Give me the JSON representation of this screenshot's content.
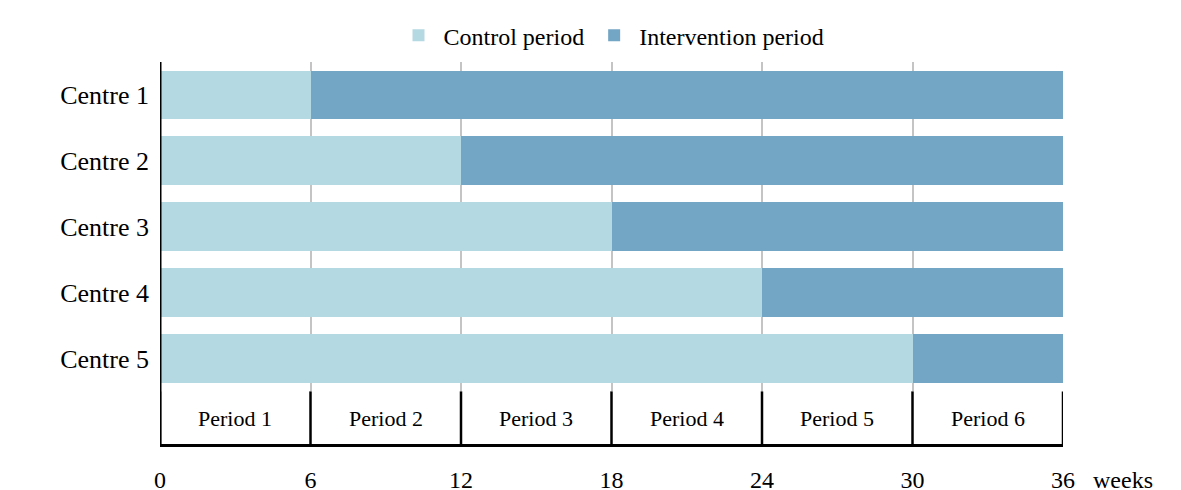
{
  "chart_data": {
    "type": "bar",
    "orientation": "horizontal",
    "stacked": true,
    "categories": [
      "Centre 1",
      "Centre 2",
      "Centre 3",
      "Centre 4",
      "Centre 5"
    ],
    "series": [
      {
        "name": "Control period",
        "color": "#b5d9e2",
        "values": [
          6,
          12,
          18,
          24,
          30
        ]
      },
      {
        "name": "Intervention period",
        "color": "#73a5c4",
        "values": [
          30,
          24,
          18,
          12,
          6
        ]
      }
    ],
    "x_label": "weeks",
    "xlim": [
      0,
      36
    ],
    "xticks": [
      0,
      6,
      12,
      18,
      24,
      30,
      36
    ],
    "periods": [
      "Period 1",
      "Period 2",
      "Period 3",
      "Period 4",
      "Period 5",
      "Period 6"
    ],
    "grid": true,
    "legend": "top"
  }
}
